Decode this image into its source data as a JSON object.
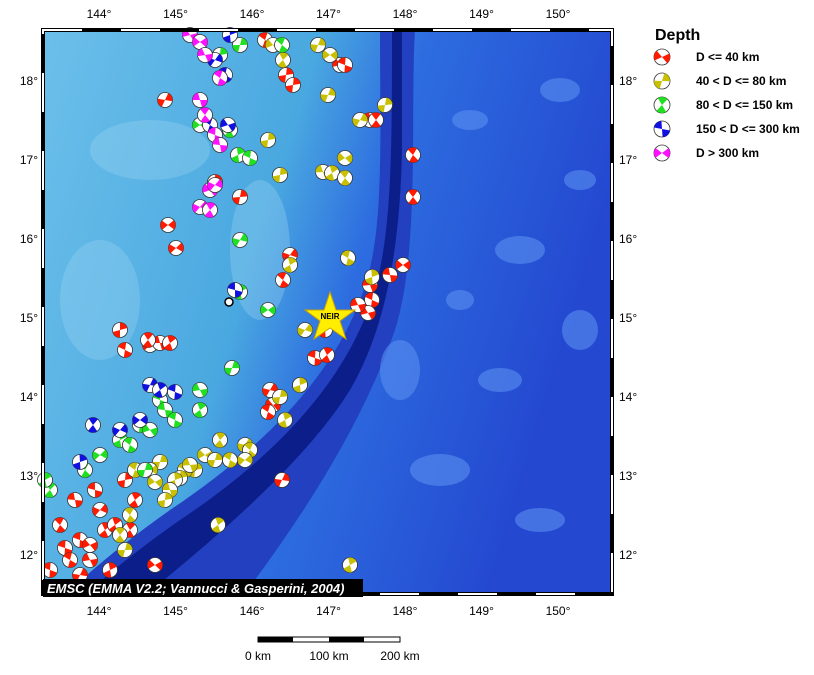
{
  "map": {
    "lon_labels": [
      "144°",
      "145°",
      "146°",
      "147°",
      "148°",
      "149°",
      "150°"
    ],
    "lat_labels": [
      "18°",
      "17°",
      "16°",
      "15°",
      "14°",
      "13°",
      "12°"
    ],
    "legend": {
      "title": "Depth",
      "entries": [
        {
          "label": "D <= 40 km",
          "color": "#ff1a00"
        },
        {
          "label": "40 < D <= 80 km",
          "color": "#c8c000"
        },
        {
          "label": "80 < D <= 150 km",
          "color": "#20e020"
        },
        {
          "label": "150 < D <= 300 km",
          "color": "#1010e0"
        },
        {
          "label": "D > 300 km",
          "color": "#ff10ff"
        }
      ]
    },
    "station": "NEIR",
    "credit": "EMSC (EMMA V2.2; Vannucci & Gasperini, 2004)",
    "scale_labels": [
      "0 km",
      "100 km",
      "200 km"
    ]
  }
}
